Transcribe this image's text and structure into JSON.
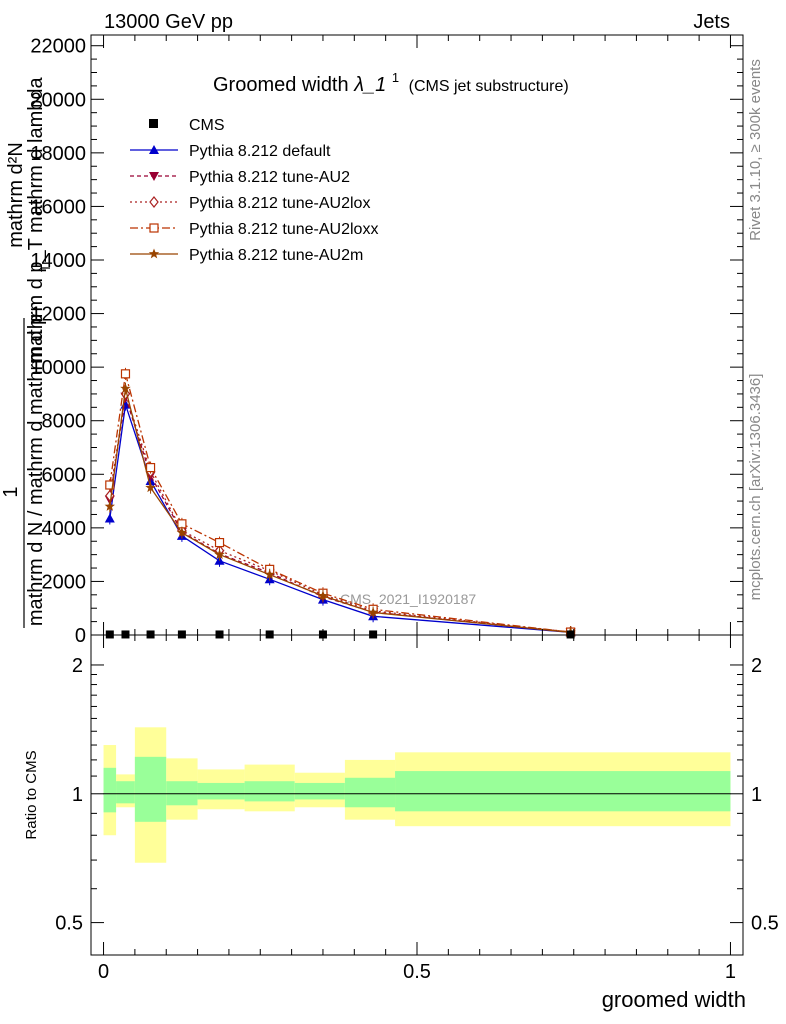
{
  "header": {
    "left": "13000 GeV pp",
    "right": "Jets"
  },
  "side": {
    "rivet": "Rivet 3.1.10, ≥ 300k events",
    "mcplots": "mcplots.cern.ch [arXiv:1306.3436]"
  },
  "chart_data": {
    "type": "line",
    "title": "Groomed width",
    "title_math": "λ_1",
    "title_sup": "1",
    "title_note": "(CMS jet substructure)",
    "watermark": "CMS_2021_I1920187",
    "ylabel_top": "mathrm d²N",
    "ylabel_mid": "mathrm d p_T mathrm d lambda",
    "ylabel_sub": "T",
    "ylabel_one": "1",
    "ylabel_bottom": "mathrm d N / mathrm d mathrm d p",
    "xlabel": "groomed width",
    "ratio_ylabel": "Ratio to CMS",
    "x_ticks": [
      "0",
      "0.5",
      "1"
    ],
    "x_tick_values": [
      0,
      0.5,
      1
    ],
    "xlim": [
      -0.02,
      1.02
    ],
    "ylim": [
      0,
      22400
    ],
    "y_ticks": [
      0,
      2000,
      4000,
      6000,
      8000,
      10000,
      12000,
      14000,
      16000,
      18000,
      20000,
      22000
    ],
    "y_tick_labels": [
      "0",
      "2000",
      "4000",
      "6000",
      "8000",
      "10000",
      "12000",
      "14000",
      "16000",
      "18000",
      "20000",
      "22000"
    ],
    "ratio_ylim": [
      0.42,
      2.35
    ],
    "ratio_ticks": [
      0.5,
      1,
      2
    ],
    "ratio_tick_labels": [
      "0.5",
      "1",
      "2"
    ],
    "x": [
      0.01,
      0.035,
      0.075,
      0.125,
      0.185,
      0.265,
      0.35,
      0.43,
      0.745
    ],
    "data": {
      "name": "CMS",
      "values": [
        20,
        20,
        20,
        20,
        20,
        20,
        20,
        20,
        20
      ]
    },
    "series": [
      {
        "name": "Pythia 8.212 default",
        "color": "#0000cc",
        "dash": "",
        "marker": "triangle-up",
        "values": [
          4350,
          8600,
          5750,
          3700,
          2770,
          2080,
          1320,
          700,
          100
        ]
      },
      {
        "name": "Pythia 8.212 tune-AU2",
        "color": "#990033",
        "dash": "4,3",
        "marker": "triangle-down",
        "values": [
          5050,
          8900,
          5950,
          3850,
          3030,
          2320,
          1430,
          860,
          100
        ]
      },
      {
        "name": "Pythia 8.212 tune-AU2lox",
        "color": "#aa2222",
        "dash": "2,3",
        "marker": "diamond-open",
        "values": [
          5200,
          9000,
          6100,
          3900,
          3150,
          2400,
          1500,
          900,
          110
        ]
      },
      {
        "name": "Pythia 8.212 tune-AU2loxx",
        "color": "#bb3300",
        "dash": "8,3,2,3",
        "marker": "square-open",
        "values": [
          5600,
          9750,
          6250,
          4150,
          3450,
          2450,
          1560,
          960,
          110
        ]
      },
      {
        "name": "Pythia 8.212 tune-AU2m",
        "color": "#994400",
        "dash": "",
        "marker": "star",
        "values": [
          4800,
          9200,
          5500,
          3820,
          3000,
          2250,
          1460,
          840,
          100
        ]
      }
    ],
    "ratio_bands": [
      {
        "x0": 0.0,
        "x1": 0.02,
        "g_lo": 0.905,
        "g_hi": 1.15,
        "y_lo": 0.8,
        "y_hi": 1.3
      },
      {
        "x0": 0.02,
        "x1": 0.05,
        "g_lo": 0.95,
        "g_hi": 1.07,
        "y_lo": 0.93,
        "y_hi": 1.11
      },
      {
        "x0": 0.05,
        "x1": 0.1,
        "g_lo": 0.86,
        "g_hi": 1.22,
        "y_lo": 0.69,
        "y_hi": 1.43
      },
      {
        "x0": 0.1,
        "x1": 0.15,
        "g_lo": 0.94,
        "g_hi": 1.07,
        "y_lo": 0.87,
        "y_hi": 1.21
      },
      {
        "x0": 0.15,
        "x1": 0.225,
        "g_lo": 0.97,
        "g_hi": 1.06,
        "y_lo": 0.92,
        "y_hi": 1.14
      },
      {
        "x0": 0.225,
        "x1": 0.305,
        "g_lo": 0.96,
        "g_hi": 1.07,
        "y_lo": 0.91,
        "y_hi": 1.17
      },
      {
        "x0": 0.305,
        "x1": 0.385,
        "g_lo": 0.97,
        "g_hi": 1.06,
        "y_lo": 0.93,
        "y_hi": 1.12
      },
      {
        "x0": 0.385,
        "x1": 0.465,
        "g_lo": 0.93,
        "g_hi": 1.09,
        "y_lo": 0.87,
        "y_hi": 1.2
      },
      {
        "x0": 0.465,
        "x1": 1.0,
        "g_lo": 0.91,
        "g_hi": 1.13,
        "y_lo": 0.84,
        "y_hi": 1.25
      }
    ]
  }
}
